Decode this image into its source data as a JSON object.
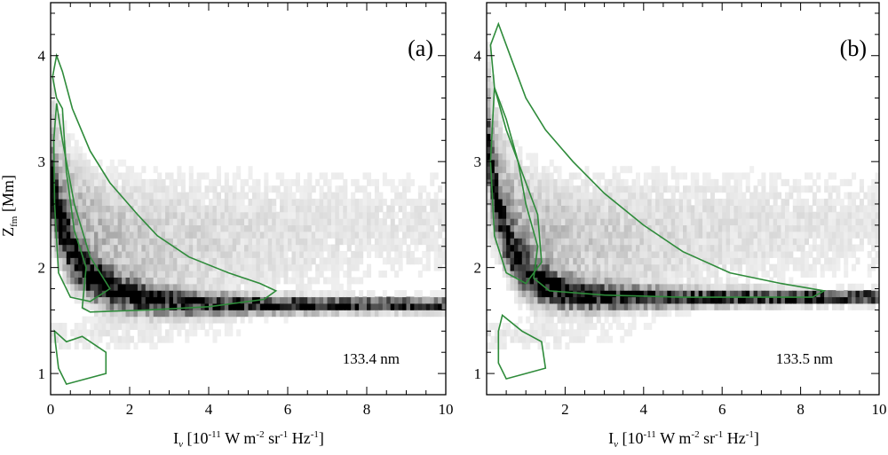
{
  "chart_data": [
    {
      "type": "heatmap",
      "panel_label": "(a)",
      "wavelength_label": "133.4 nm",
      "xlabel": "I",
      "ylabel": "Z",
      "xlim": [
        0,
        10
      ],
      "ylim": [
        0.8,
        4.5
      ],
      "xticks": [
        "0",
        "2",
        "4",
        "6",
        "8",
        "10"
      ],
      "yticks": [
        "1",
        "2",
        "3",
        "4"
      ],
      "ridge": {
        "z_min": 1.65,
        "z_scale": 0.85,
        "decay": 0.9
      },
      "contour_outer": [
        [
          0.15,
          4.0
        ],
        [
          0.3,
          3.85
        ],
        [
          0.55,
          3.5
        ],
        [
          1.0,
          3.1
        ],
        [
          1.5,
          2.8
        ],
        [
          2.2,
          2.5
        ],
        [
          2.7,
          2.3
        ],
        [
          3.5,
          2.1
        ],
        [
          4.5,
          1.95
        ],
        [
          5.3,
          1.85
        ],
        [
          5.7,
          1.78
        ],
        [
          5.4,
          1.7
        ],
        [
          4.0,
          1.63
        ],
        [
          2.5,
          1.6
        ],
        [
          1.0,
          1.58
        ],
        [
          0.8,
          1.62
        ],
        [
          0.9,
          2.0
        ],
        [
          0.6,
          2.35
        ],
        [
          0.4,
          2.9
        ],
        [
          0.3,
          3.5
        ],
        [
          0.15,
          3.6
        ],
        [
          0.05,
          3.8
        ]
      ],
      "contour_inner": [
        [
          0.15,
          3.55
        ],
        [
          0.3,
          3.2
        ],
        [
          0.6,
          2.6
        ],
        [
          1.0,
          2.1
        ],
        [
          1.5,
          1.8
        ],
        [
          1.0,
          1.68
        ],
        [
          0.5,
          1.72
        ],
        [
          0.2,
          1.95
        ],
        [
          0.1,
          2.6
        ],
        [
          0.08,
          3.2
        ]
      ],
      "contour_bottom": [
        [
          0.1,
          1.4
        ],
        [
          0.4,
          1.3
        ],
        [
          0.8,
          1.35
        ],
        [
          1.4,
          1.2
        ],
        [
          1.4,
          1.0
        ],
        [
          0.9,
          0.95
        ],
        [
          0.4,
          0.9
        ],
        [
          0.2,
          1.05
        ],
        [
          0.12,
          1.3
        ]
      ]
    },
    {
      "type": "heatmap",
      "panel_label": "(b)",
      "wavelength_label": "133.5 nm",
      "xlabel": "I",
      "ylabel": "Z",
      "xlim": [
        0,
        10
      ],
      "ylim": [
        0.8,
        4.5
      ],
      "xticks": [
        "2",
        "4",
        "6",
        "8",
        "10"
      ],
      "yticks": [
        "1",
        "2",
        "3",
        "4"
      ],
      "ridge": {
        "z_min": 1.72,
        "z_scale": 1.15,
        "decay": 0.65
      },
      "contour_outer": [
        [
          0.3,
          4.3
        ],
        [
          0.6,
          4.0
        ],
        [
          1.0,
          3.6
        ],
        [
          1.5,
          3.3
        ],
        [
          2.2,
          3.0
        ],
        [
          3.0,
          2.7
        ],
        [
          4.0,
          2.4
        ],
        [
          5.0,
          2.15
        ],
        [
          6.2,
          1.95
        ],
        [
          7.5,
          1.85
        ],
        [
          8.6,
          1.78
        ],
        [
          8.3,
          1.72
        ],
        [
          7.0,
          1.72
        ],
        [
          5.0,
          1.72
        ],
        [
          3.0,
          1.74
        ],
        [
          1.6,
          1.78
        ],
        [
          1.2,
          1.9
        ],
        [
          1.3,
          2.2
        ],
        [
          1.0,
          2.6
        ],
        [
          0.8,
          3.0
        ],
        [
          0.5,
          3.4
        ],
        [
          0.2,
          3.7
        ],
        [
          0.1,
          4.1
        ]
      ],
      "contour_inner": [
        [
          0.2,
          3.7
        ],
        [
          0.5,
          3.3
        ],
        [
          0.9,
          2.9
        ],
        [
          1.3,
          2.5
        ],
        [
          1.4,
          2.05
        ],
        [
          1.0,
          1.85
        ],
        [
          0.5,
          1.95
        ],
        [
          0.2,
          2.3
        ],
        [
          0.1,
          3.0
        ]
      ],
      "contour_bottom": [
        [
          0.4,
          1.55
        ],
        [
          0.9,
          1.4
        ],
        [
          1.4,
          1.3
        ],
        [
          1.5,
          1.05
        ],
        [
          1.0,
          1.0
        ],
        [
          0.5,
          0.95
        ],
        [
          0.3,
          1.1
        ],
        [
          0.3,
          1.4
        ]
      ]
    }
  ]
}
